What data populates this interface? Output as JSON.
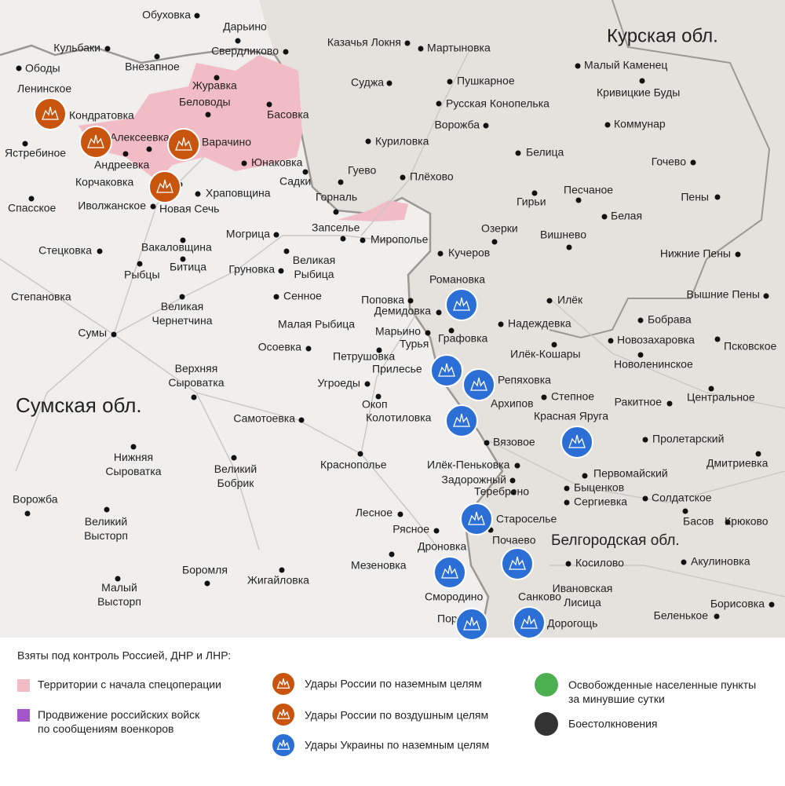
{
  "regions": {
    "kursk": "Курская обл.",
    "sumy": "Сумская обл.",
    "belgorod": "Белгородская обл."
  },
  "places": [
    "Обуховка",
    "Дарьино",
    "Кульбаки",
    "Ободы",
    "Внезапное",
    "Свердликово",
    "Казачья Локня",
    "Мартыновка",
    "Малый Каменец",
    "Ленинское",
    "Журавка",
    "Беловоды",
    "Суджа",
    "Пушкарное",
    "Кривицкие Буды",
    "Басовка",
    "Русская Конопелька",
    "Кондратовка",
    "Ворожба",
    "Коммунар",
    "Алексеевка",
    "Варачино",
    "Куриловка",
    "Белица",
    "Ястребиное",
    "Андреевка",
    "Юнаковка",
    "Гочево",
    "Гуево",
    "Плёхово",
    "Садки",
    "Корчаковка",
    "Храповщина",
    "Песчаное",
    "Гирьи",
    "Пены",
    "Спасское",
    "Иволжанское",
    "Новая Сечь",
    "Горналь",
    "Белая",
    "Запселье",
    "Озерки",
    "Могрица",
    "Мирополье",
    "Вишнево",
    "Вакаловщина",
    "Кучеров",
    "Нижние Пены",
    "Стецковка",
    "Великая\nРыбица",
    "Битица",
    "Рыбцы",
    "Груновка",
    "Романовка",
    "Сенное",
    "Великая\nЧернетчина",
    "Степановка",
    "Поповка",
    "Илёк",
    "Вышние Пены",
    "Демидовка",
    "Бобрава",
    "Надеждевка",
    "Малая Рыбица",
    "Марьино",
    "Графовка",
    "Сумы",
    "Новозахаровка",
    "Псковское",
    "Осоевка",
    "Турья",
    "Петрушовка",
    "Илёк-Кошары",
    "Прилесье",
    "Новоленинское",
    "Верхняя\nСыроватка",
    "Репяховка",
    "Угроеды",
    "Центральное",
    "Степное",
    "Архипов",
    "Ракитное",
    "Окоп",
    "Самотоевка",
    "Колотиловка",
    "Красная Яруга",
    "Вязовое",
    "Пролетарский",
    "Нижняя\nСыроватка",
    "Краснополье",
    "Илёк-Пеньковка",
    "Дмитриевка",
    "Великий\nБобрик",
    "Задорожный",
    "Первомайский",
    "Быценков",
    "Теребрено",
    "Солдатское",
    "Сергиевка",
    "Ворожба",
    "Лесное",
    "Великий\nВысторп",
    "Староселье",
    "Басов",
    "Крюково",
    "Рясное",
    "Почаево",
    "Дроновка",
    "Мезеновка",
    "Косилово",
    "Акулиновка",
    "Боромля",
    "Жигайловка",
    "Малый\nВысторп",
    "Ивановская\nЛисица",
    "Смородино",
    "Санково",
    "Борисовка",
    "Беленькое",
    "Пороз",
    "Дорогощь"
  ],
  "legend": {
    "title": "Взяты под контроль Россией, ДНР и ЛНР:",
    "items": [
      "Территории с начала спецоперации",
      "Продвижение российских войск\nпо сообщениям военкоров",
      "Удары России по наземным целям",
      "Удары России по воздушным целям",
      "Удары Украины по наземным целям",
      "Освобожденные населенные пункты\nза минувшие сутки",
      "Боестолкновения"
    ]
  }
}
